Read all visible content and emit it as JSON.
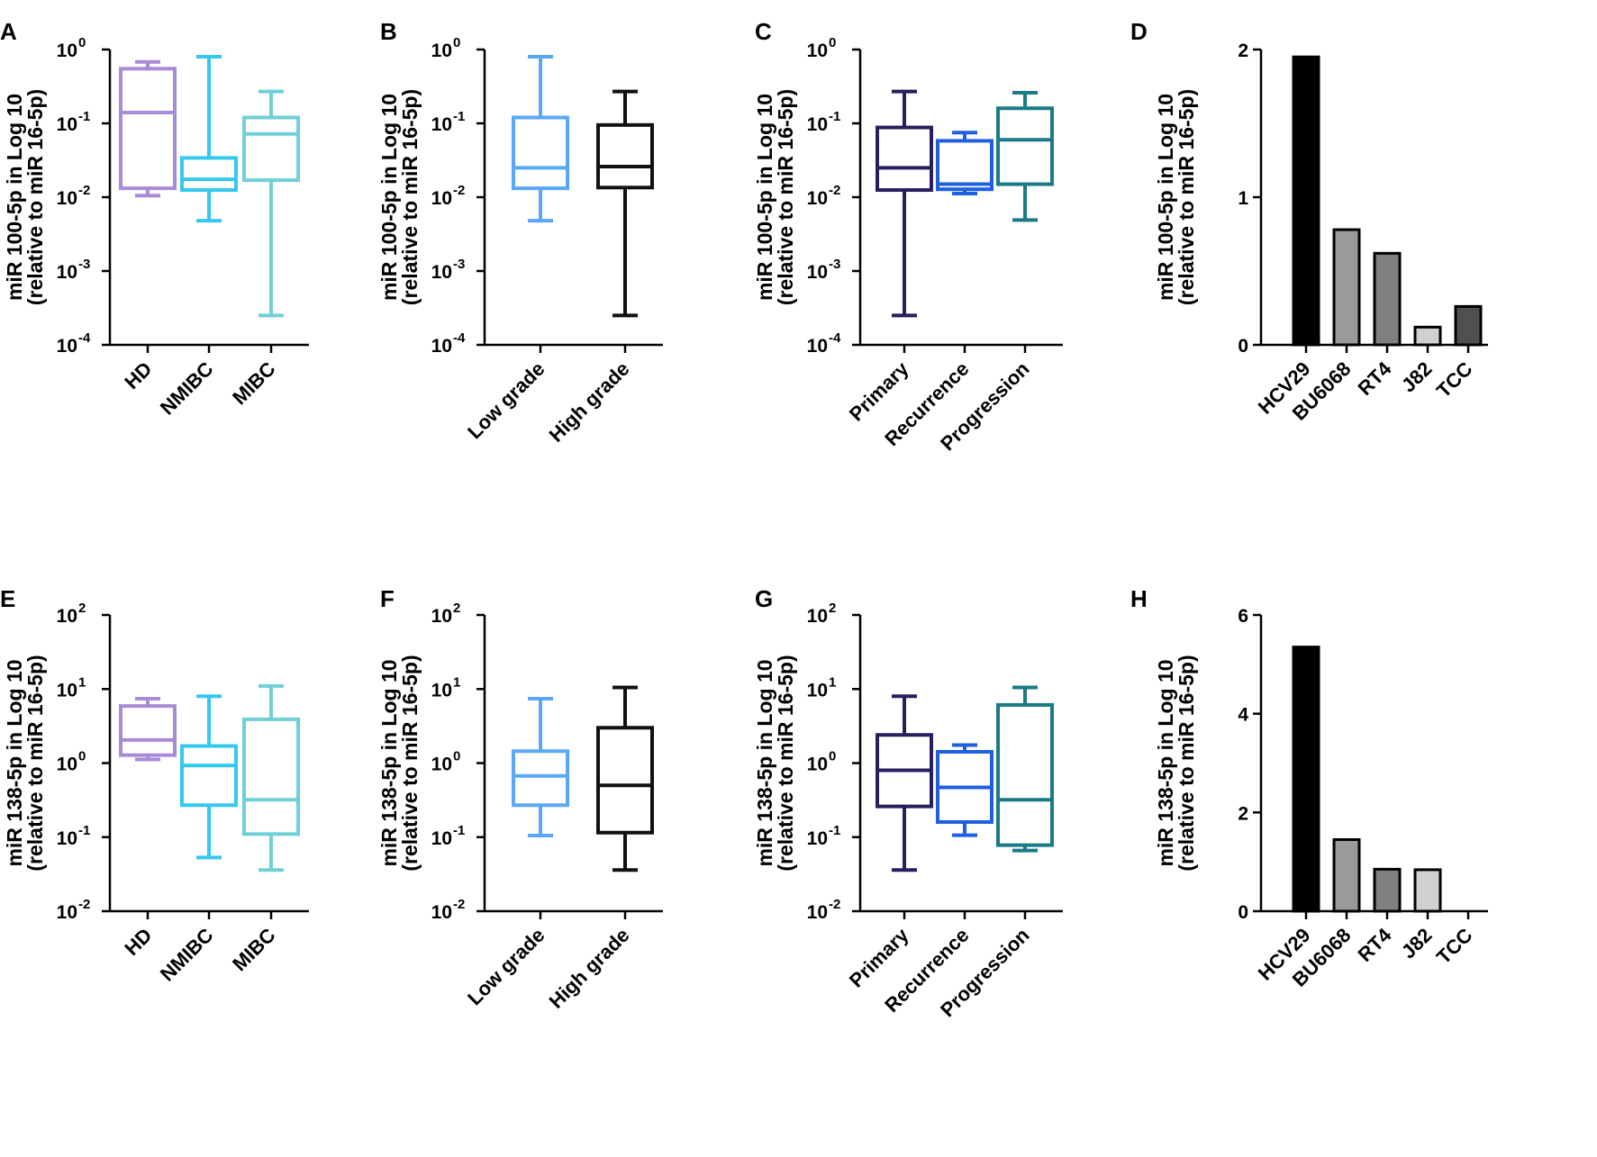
{
  "figure": {
    "title": ""
  },
  "colors": {
    "hd": "#a88bd6",
    "nmibc": "#35c8ef",
    "mibc": "#6fd0d6",
    "low_grade": "#5aa8f5",
    "high_grade": "#111111",
    "primary": "#2b1d5e",
    "recurrence": "#1f5fe0",
    "progression": "#1b7a86",
    "axis": "#000000"
  },
  "chart_data": [
    {
      "id": "A",
      "type": "box",
      "scale": "log",
      "ylabel_line1": "miR 100-5p in Log 10",
      "ylabel_line2": "(relative to miR 16-5p)",
      "ylim": [
        0.0001,
        1
      ],
      "yticks": [
        {
          "base": "10",
          "exp": "0",
          "value": 1
        },
        {
          "base": "10",
          "exp": "-1",
          "value": 0.1
        },
        {
          "base": "10",
          "exp": "-2",
          "value": 0.01
        },
        {
          "base": "10",
          "exp": "-3",
          "value": 0.001
        },
        {
          "base": "10",
          "exp": "-4",
          "value": 0.0001
        }
      ],
      "categories": [
        "HD",
        "NMIBC",
        "MIBC"
      ],
      "boxes": [
        {
          "min": 0.0105,
          "q1": 0.0132,
          "median": 0.14,
          "q3": 0.55,
          "max": 0.68,
          "color": "#a88bd6"
        },
        {
          "min": 0.0048,
          "q1": 0.0125,
          "median": 0.0175,
          "q3": 0.034,
          "max": 0.8,
          "color": "#35c8ef"
        },
        {
          "min": 0.00025,
          "q1": 0.017,
          "median": 0.072,
          "q3": 0.12,
          "max": 0.27,
          "color": "#6fd0d6"
        }
      ]
    },
    {
      "id": "B",
      "type": "box",
      "scale": "log",
      "ylabel_line1": "miR 100-5p in Log 10",
      "ylabel_line2": "(relative to miR 16-5p)",
      "ylim": [
        0.0001,
        1
      ],
      "yticks": [
        {
          "base": "10",
          "exp": "0",
          "value": 1
        },
        {
          "base": "10",
          "exp": "-1",
          "value": 0.1
        },
        {
          "base": "10",
          "exp": "-2",
          "value": 0.01
        },
        {
          "base": "10",
          "exp": "-3",
          "value": 0.001
        },
        {
          "base": "10",
          "exp": "-4",
          "value": 0.0001
        }
      ],
      "categories": [
        "Low grade",
        "High grade"
      ],
      "boxes": [
        {
          "min": 0.0048,
          "q1": 0.0132,
          "median": 0.025,
          "q3": 0.12,
          "max": 0.8,
          "color": "#5aa8f5"
        },
        {
          "min": 0.00025,
          "q1": 0.0135,
          "median": 0.026,
          "q3": 0.095,
          "max": 0.27,
          "color": "#111111"
        }
      ]
    },
    {
      "id": "C",
      "type": "box",
      "scale": "log",
      "ylabel_line1": "miR 100-5p in Log 10",
      "ylabel_line2": "(relative to miR 16-5p)",
      "ylim": [
        0.0001,
        1
      ],
      "yticks": [
        {
          "base": "10",
          "exp": "0",
          "value": 1
        },
        {
          "base": "10",
          "exp": "-1",
          "value": 0.1
        },
        {
          "base": "10",
          "exp": "-2",
          "value": 0.01
        },
        {
          "base": "10",
          "exp": "-3",
          "value": 0.001
        },
        {
          "base": "10",
          "exp": "-4",
          "value": 0.0001
        }
      ],
      "categories": [
        "Primary",
        "Recurrence",
        "Progression"
      ],
      "boxes": [
        {
          "min": 0.00025,
          "q1": 0.0125,
          "median": 0.025,
          "q3": 0.088,
          "max": 0.27,
          "color": "#2b1d5e"
        },
        {
          "min": 0.0112,
          "q1": 0.0128,
          "median": 0.015,
          "q3": 0.058,
          "max": 0.075,
          "color": "#1f5fe0"
        },
        {
          "min": 0.0049,
          "q1": 0.015,
          "median": 0.06,
          "q3": 0.16,
          "max": 0.26,
          "color": "#1b7a86"
        }
      ]
    },
    {
      "id": "D",
      "type": "bar",
      "scale": "linear",
      "ylabel_line1": "miR 100-5p in Log 10",
      "ylabel_line2": "(relative to miR 16-5p)",
      "ylim": [
        0,
        2
      ],
      "yticks": [
        {
          "label": "2",
          "value": 2
        },
        {
          "label": "1",
          "value": 1
        },
        {
          "label": "0",
          "value": 0
        }
      ],
      "categories": [
        "HCV29",
        "BU6068",
        "RT4",
        "J82",
        "TCC"
      ],
      "values": [
        1.95,
        0.78,
        0.62,
        0.12,
        0.26
      ],
      "fills": [
        "#000000",
        "#9a9a9a",
        "#808080",
        "#d0d0d0",
        "#505050"
      ]
    },
    {
      "id": "E",
      "type": "box",
      "scale": "log",
      "ylabel_line1": "miR 138-5p in Log 10",
      "ylabel_line2": "(relative to miR 16-5p)",
      "ylim": [
        0.01,
        100
      ],
      "yticks": [
        {
          "base": "10",
          "exp": "2",
          "value": 100
        },
        {
          "base": "10",
          "exp": "1",
          "value": 10
        },
        {
          "base": "10",
          "exp": "0",
          "value": 1
        },
        {
          "base": "10",
          "exp": "-1",
          "value": 0.1
        },
        {
          "base": "10",
          "exp": "-2",
          "value": 0.01
        }
      ],
      "categories": [
        "HD",
        "NMIBC",
        "MIBC"
      ],
      "boxes": [
        {
          "min": 1.12,
          "q1": 1.28,
          "median": 2.05,
          "q3": 5.9,
          "max": 7.4,
          "color": "#a88bd6"
        },
        {
          "min": 0.053,
          "q1": 0.27,
          "median": 0.93,
          "q3": 1.7,
          "max": 8.0,
          "color": "#35c8ef"
        },
        {
          "min": 0.036,
          "q1": 0.11,
          "median": 0.32,
          "q3": 3.9,
          "max": 11.0,
          "color": "#6fd0d6"
        }
      ]
    },
    {
      "id": "F",
      "type": "box",
      "scale": "log",
      "ylabel_line1": "miR 138-5p in Log 10",
      "ylabel_line2": "(relative to miR 16-5p)",
      "ylim": [
        0.01,
        100
      ],
      "yticks": [
        {
          "base": "10",
          "exp": "2",
          "value": 100
        },
        {
          "base": "10",
          "exp": "1",
          "value": 10
        },
        {
          "base": "10",
          "exp": "0",
          "value": 1
        },
        {
          "base": "10",
          "exp": "-1",
          "value": 0.1
        },
        {
          "base": "10",
          "exp": "-2",
          "value": 0.01
        }
      ],
      "categories": [
        "Low grade",
        "High grade"
      ],
      "boxes": [
        {
          "min": 0.105,
          "q1": 0.27,
          "median": 0.67,
          "q3": 1.45,
          "max": 7.4,
          "color": "#5aa8f5"
        },
        {
          "min": 0.036,
          "q1": 0.115,
          "median": 0.5,
          "q3": 3.0,
          "max": 10.5,
          "color": "#111111"
        }
      ]
    },
    {
      "id": "G",
      "type": "box",
      "scale": "log",
      "ylabel_line1": "miR 138-5p in Log 10",
      "ylabel_line2": "(relative to miR 16-5p)",
      "ylim": [
        0.01,
        100
      ],
      "yticks": [
        {
          "base": "10",
          "exp": "2",
          "value": 100
        },
        {
          "base": "10",
          "exp": "1",
          "value": 10
        },
        {
          "base": "10",
          "exp": "0",
          "value": 1
        },
        {
          "base": "10",
          "exp": "-1",
          "value": 0.1
        },
        {
          "base": "10",
          "exp": "-2",
          "value": 0.01
        }
      ],
      "categories": [
        "Primary",
        "Recurrence",
        "Progression"
      ],
      "boxes": [
        {
          "min": 0.036,
          "q1": 0.26,
          "median": 0.8,
          "q3": 2.4,
          "max": 8.0,
          "color": "#2b1d5e"
        },
        {
          "min": 0.106,
          "q1": 0.16,
          "median": 0.47,
          "q3": 1.42,
          "max": 1.75,
          "color": "#1f5fe0"
        },
        {
          "min": 0.066,
          "q1": 0.078,
          "median": 0.32,
          "q3": 6.1,
          "max": 10.5,
          "color": "#1b7a86"
        }
      ]
    },
    {
      "id": "H",
      "type": "bar",
      "scale": "linear",
      "ylabel_line1": "miR 138-5p in Log 10",
      "ylabel_line2": "(relative to miR 16-5p)",
      "ylim": [
        0,
        6
      ],
      "yticks": [
        {
          "label": "6",
          "value": 6
        },
        {
          "label": "4",
          "value": 4
        },
        {
          "label": "2",
          "value": 2
        },
        {
          "label": "0",
          "value": 0
        }
      ],
      "categories": [
        "HCV29",
        "BU6068",
        "RT4",
        "J82",
        "TCC"
      ],
      "values": [
        5.35,
        1.45,
        0.85,
        0.84,
        0
      ],
      "fills": [
        "#000000",
        "#9a9a9a",
        "#808080",
        "#d0d0d0",
        "#505050"
      ]
    }
  ]
}
